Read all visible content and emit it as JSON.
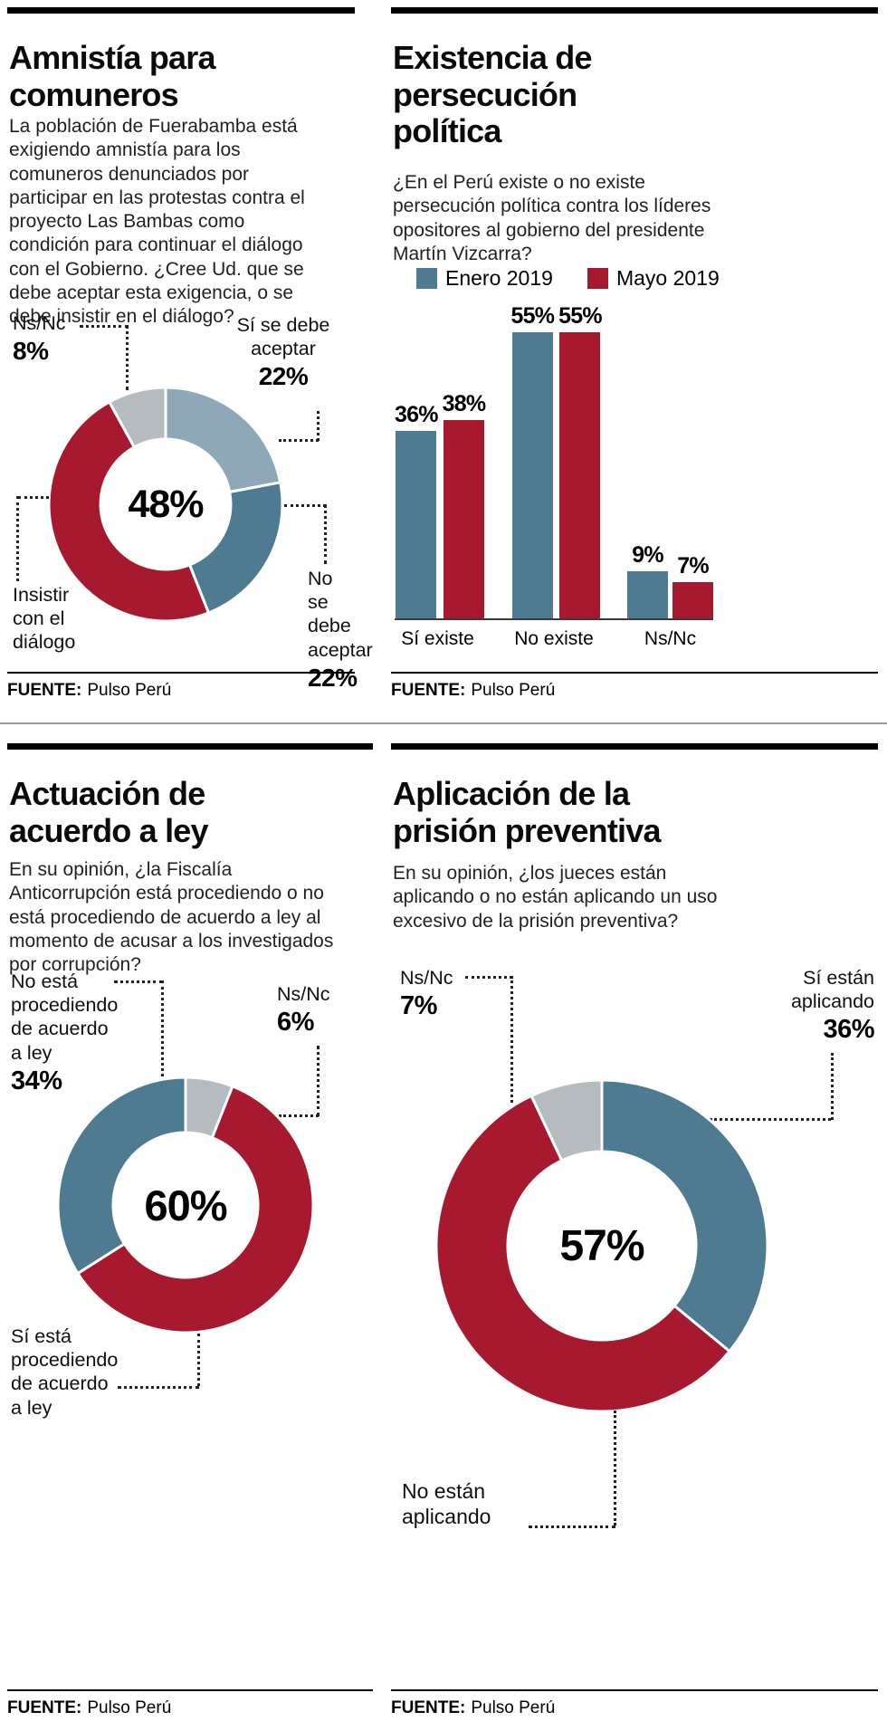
{
  "colors": {
    "red": "#a6192e",
    "steel_blue": "#4e7a92",
    "light_blue": "#8fa8b8",
    "gray": "#b6bbbf",
    "top_bar": "#000000",
    "background": "#ffffff"
  },
  "chart_data": [
    {
      "id": "amnistia",
      "type": "pie",
      "title": "Amnistía para comuneros",
      "center_label": "48%",
      "slices": [
        {
          "label": "Sí se debe aceptar",
          "value": 22,
          "color": "#8fa8b8"
        },
        {
          "label": "No se debe aceptar",
          "value": 22,
          "color": "#4e7a92"
        },
        {
          "label": "Insistir con el diálogo",
          "value": 48,
          "color": "#a6192e"
        },
        {
          "label": "Ns/Nc",
          "value": 8,
          "color": "#b6bbbf"
        }
      ]
    },
    {
      "id": "persecucion",
      "type": "bar",
      "title": "Existencia de persecución política",
      "categories": [
        "Sí existe",
        "No existe",
        "Ns/Nc"
      ],
      "series": [
        {
          "name": "Enero 2019",
          "color": "#4e7a92",
          "values": [
            36,
            55,
            9
          ]
        },
        {
          "name": "Mayo 2019",
          "color": "#a6192e",
          "values": [
            38,
            55,
            7
          ]
        }
      ],
      "value_suffix": "%",
      "ylim": [
        0,
        60
      ],
      "legend_position": "top",
      "grid": false
    },
    {
      "id": "actuacion",
      "type": "pie",
      "title": "Actuación de acuerdo a ley",
      "center_label": "60%",
      "slices": [
        {
          "label": "Ns/Nc",
          "value": 6,
          "color": "#b6bbbf"
        },
        {
          "label": "Sí está procediendo de acuerdo a ley",
          "value": 60,
          "color": "#a6192e"
        },
        {
          "label": "No está procediendo de acuerdo a ley",
          "value": 34,
          "color": "#4e7a92"
        }
      ]
    },
    {
      "id": "prision",
      "type": "pie",
      "title": "Aplicación de la prisión preventiva",
      "center_label": "57%",
      "slices": [
        {
          "label": "Sí están aplicando",
          "value": 36,
          "color": "#4e7a92"
        },
        {
          "label": "No están aplicando",
          "value": 57,
          "color": "#a6192e"
        },
        {
          "label": "Ns/Nc",
          "value": 7,
          "color": "#b6bbbf"
        }
      ]
    }
  ],
  "panels": {
    "amnistia": {
      "title": "Amnistía para\ncomuneros",
      "intro": "La población de Fuerabamba está exigiendo amnistía para los comuneros denunciados por participar en las protestas contra el proyecto Las Bambas como condición para continuar el diálogo con el Gobierno. ¿Cree Ud. que se debe aceptar esta exigencia,  o se debe insistir en el diálogo?",
      "callouts": {
        "nsnc": {
          "name": "Ns/Nc",
          "pct": "8%"
        },
        "si": {
          "name": "Sí se debe\naceptar",
          "pct": "22%"
        },
        "no": {
          "name": "No\nse debe\naceptar",
          "pct": "22%"
        },
        "insistir": {
          "name": "Insistir\ncon el\ndiálogo"
        }
      },
      "source": {
        "label": "FUENTE:",
        "value": "Pulso Perú"
      }
    },
    "persecucion": {
      "title": "Existencia de\npersecución\npolítica",
      "intro": "¿En el Perú existe o no existe persecución política contra los líderes opositores al gobierno del presidente Martín Vizcarra?",
      "source": {
        "label": "FUENTE:",
        "value": "Pulso Perú"
      }
    },
    "actuacion": {
      "title": "Actuación de\nacuerdo a ley",
      "intro": "En su opinión, ¿la Fiscalía Anticorrupción está procediendo o no está procediendo de acuerdo a ley al momento de acusar a los investigados por corrupción?",
      "callouts": {
        "noesta": {
          "name": "No está\nprocediendo\nde acuerdo\na ley",
          "pct": "34%"
        },
        "nsnc": {
          "name": "Ns/Nc",
          "pct": "6%"
        },
        "siesta": {
          "name": "Sí está\nprocediendo\nde acuerdo\na ley"
        }
      },
      "source": {
        "label": "FUENTE:",
        "value": "Pulso Perú"
      }
    },
    "prision": {
      "title": "Aplicación de la\nprisión preventiva",
      "intro": "En su opinión, ¿los jueces están aplicando o no están aplicando un uso excesivo de la prisión preventiva?",
      "callouts": {
        "nsnc": {
          "name": "Ns/Nc",
          "pct": "7%"
        },
        "siaplican": {
          "name": "Sí están\naplicando",
          "pct": "36%"
        },
        "noaplican": {
          "name": "No están\naplicando"
        }
      },
      "source": {
        "label": "FUENTE:",
        "value": "Pulso Perú"
      }
    }
  }
}
